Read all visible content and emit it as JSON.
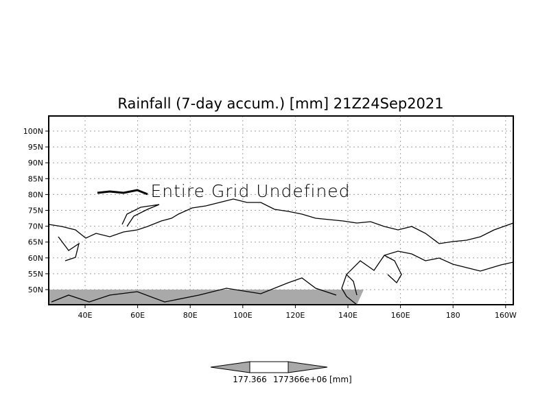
{
  "title": "Rainfall (7-day accum.) [mm] 21Z24Sep2021",
  "message": "Entire Grid Undefined",
  "y_ticks": [
    "100N",
    "95N",
    "90N",
    "85N",
    "80N",
    "75N",
    "70N",
    "65N",
    "60N",
    "55N",
    "50N"
  ],
  "x_ticks": [
    "40E",
    "60E",
    "80E",
    "100E",
    "120E",
    "140E",
    "160E",
    "180",
    "160W"
  ],
  "colorbar": {
    "label_left": "177.366",
    "label_overlap": "177366e+06",
    "units": "[mm]",
    "fill": "#a9a9a9"
  },
  "colors": {
    "undefined_band": "#a9a9a9",
    "grid": "#a0a0a0"
  }
}
